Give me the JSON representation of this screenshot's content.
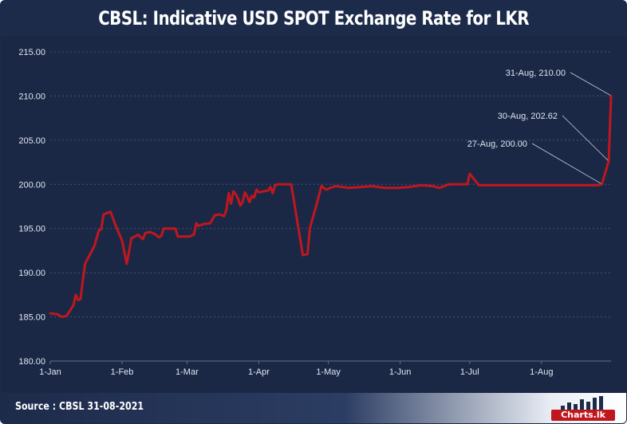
{
  "header": {
    "title": "CBSL: Indicative USD SPOT Exchange Rate for LKR"
  },
  "footer": {
    "source": "Source : CBSL 31-08-2021",
    "logo_text": "Charts.lk"
  },
  "colors": {
    "background": "#1b2845",
    "line": "#c0171f",
    "grid": "#3d5380",
    "text": "#dfe5f0"
  },
  "chart_data": {
    "type": "line",
    "title": "CBSL: Indicative USD SPOT Exchange Rate for LKR",
    "xlabel": "",
    "ylabel": "",
    "ylim": [
      180,
      215
    ],
    "xlim": [
      "2021-01-01",
      "2021-08-31"
    ],
    "grid": true,
    "yticks": [
      "180.00",
      "185.00",
      "190.00",
      "195.00",
      "200.00",
      "205.00",
      "210.00",
      "215.00"
    ],
    "xticks": [
      {
        "date": "2021-01-01",
        "label": "1-Jan"
      },
      {
        "date": "2021-02-01",
        "label": "1-Feb"
      },
      {
        "date": "2021-03-01",
        "label": "1-Mar"
      },
      {
        "date": "2021-04-01",
        "label": "1-Apr"
      },
      {
        "date": "2021-05-01",
        "label": "1-May"
      },
      {
        "date": "2021-06-01",
        "label": "1-Jun"
      },
      {
        "date": "2021-07-01",
        "label": "1-Jul"
      },
      {
        "date": "2021-08-01",
        "label": "1-Aug"
      }
    ],
    "series": [
      {
        "points": [
          [
            "2021-01-01",
            185.4
          ],
          [
            "2021-01-04",
            185.3
          ],
          [
            "2021-01-06",
            185.0
          ],
          [
            "2021-01-08",
            185.1
          ],
          [
            "2021-01-11",
            186.3
          ],
          [
            "2021-01-12",
            187.5
          ],
          [
            "2021-01-13",
            186.9
          ],
          [
            "2021-01-14",
            187.0
          ],
          [
            "2021-01-15",
            189.0
          ],
          [
            "2021-01-16",
            191.0
          ],
          [
            "2021-01-19",
            192.5
          ],
          [
            "2021-01-20",
            193.0
          ],
          [
            "2021-01-22",
            194.8
          ],
          [
            "2021-01-23",
            194.9
          ],
          [
            "2021-01-24",
            196.6
          ],
          [
            "2021-01-27",
            196.9
          ],
          [
            "2021-01-28",
            196.2
          ],
          [
            "2021-01-29",
            195.5
          ],
          [
            "2021-02-01",
            193.6
          ],
          [
            "2021-02-02",
            192.3
          ],
          [
            "2021-02-03",
            191.0
          ],
          [
            "2021-02-04",
            192.4
          ],
          [
            "2021-02-05",
            193.9
          ],
          [
            "2021-02-08",
            194.3
          ],
          [
            "2021-02-09",
            194.0
          ],
          [
            "2021-02-10",
            193.8
          ],
          [
            "2021-02-11",
            194.5
          ],
          [
            "2021-02-13",
            194.6
          ],
          [
            "2021-02-15",
            194.4
          ],
          [
            "2021-02-17",
            194.0
          ],
          [
            "2021-02-18",
            194.2
          ],
          [
            "2021-02-19",
            195.0
          ],
          [
            "2021-02-24",
            195.0
          ],
          [
            "2021-02-25",
            194.1
          ],
          [
            "2021-03-02",
            194.1
          ],
          [
            "2021-03-04",
            194.3
          ],
          [
            "2021-03-05",
            195.6
          ],
          [
            "2021-03-06",
            195.3
          ],
          [
            "2021-03-08",
            195.5
          ],
          [
            "2021-03-11",
            195.6
          ],
          [
            "2021-03-13",
            196.5
          ],
          [
            "2021-03-15",
            196.6
          ],
          [
            "2021-03-17",
            196.4
          ],
          [
            "2021-03-18",
            197.1
          ],
          [
            "2021-03-19",
            199.0
          ],
          [
            "2021-03-20",
            197.8
          ],
          [
            "2021-03-21",
            199.2
          ],
          [
            "2021-03-22",
            198.9
          ],
          [
            "2021-03-23",
            198.4
          ],
          [
            "2021-03-24",
            197.6
          ],
          [
            "2021-03-25",
            198.0
          ],
          [
            "2021-03-26",
            199.1
          ],
          [
            "2021-03-27",
            198.6
          ],
          [
            "2021-03-28",
            198.0
          ],
          [
            "2021-03-29",
            198.7
          ],
          [
            "2021-03-30",
            198.5
          ],
          [
            "2021-03-31",
            199.4
          ],
          [
            "2021-04-01",
            199.1
          ],
          [
            "2021-04-05",
            199.3
          ],
          [
            "2021-04-06",
            199.7
          ],
          [
            "2021-04-07",
            199.0
          ],
          [
            "2021-04-08",
            199.9
          ],
          [
            "2021-04-09",
            200.0
          ],
          [
            "2021-04-15",
            200.0
          ],
          [
            "2021-04-20",
            192.0
          ],
          [
            "2021-04-22",
            192.1
          ],
          [
            "2021-04-23",
            195.0
          ],
          [
            "2021-04-26",
            197.8
          ],
          [
            "2021-04-28",
            199.8
          ],
          [
            "2021-04-30",
            199.4
          ],
          [
            "2021-05-04",
            199.8
          ],
          [
            "2021-05-10",
            199.6
          ],
          [
            "2021-05-15",
            199.7
          ],
          [
            "2021-05-20",
            199.8
          ],
          [
            "2021-05-25",
            199.6
          ],
          [
            "2021-05-31",
            199.6
          ],
          [
            "2021-06-05",
            199.7
          ],
          [
            "2021-06-10",
            199.9
          ],
          [
            "2021-06-15",
            199.8
          ],
          [
            "2021-06-18",
            199.6
          ],
          [
            "2021-06-22",
            200.0
          ],
          [
            "2021-06-30",
            200.0
          ],
          [
            "2021-07-01",
            201.2
          ],
          [
            "2021-07-05",
            199.9
          ],
          [
            "2021-07-15",
            199.9
          ],
          [
            "2021-07-31",
            199.9
          ],
          [
            "2021-08-05",
            199.9
          ],
          [
            "2021-08-15",
            199.9
          ],
          [
            "2021-08-25",
            199.9
          ],
          [
            "2021-08-27",
            200.0
          ],
          [
            "2021-08-30",
            202.62
          ],
          [
            "2021-08-31",
            210.0
          ]
        ]
      }
    ],
    "annotations": [
      {
        "text": "31-Aug,  210.00",
        "date": "2021-08-31",
        "value": 210.0
      },
      {
        "text": "30-Aug,  202.62",
        "date": "2021-08-30",
        "value": 202.62
      },
      {
        "text": "27-Aug,  200.00",
        "date": "2021-08-27",
        "value": 200.0
      }
    ]
  }
}
